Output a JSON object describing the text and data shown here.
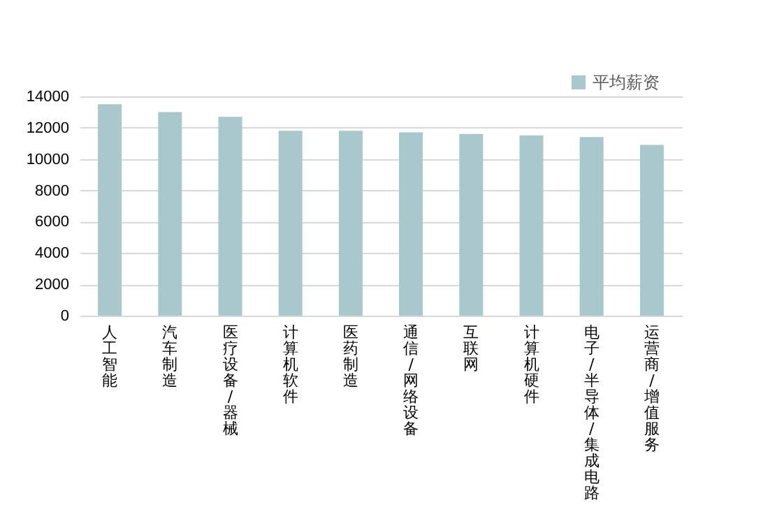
{
  "chart_data": {
    "type": "bar",
    "categories": [
      "人工智能",
      "汽车制造",
      "医疗设备/器械",
      "计算机软件",
      "医药制造",
      "通信/网络设备",
      "互联网",
      "计算机硬件",
      "电子/半导体/集成电路",
      "运营商/增值服务"
    ],
    "series": [
      {
        "name": "平均薪资",
        "color": "#a8c8cb",
        "values": [
          13500,
          13000,
          12700,
          11800,
          11800,
          11700,
          11600,
          11500,
          11400,
          10900
        ]
      }
    ],
    "ylim": [
      0,
      14000
    ],
    "yticks": [
      0,
      2000,
      4000,
      6000,
      8000,
      10000,
      12000,
      14000
    ],
    "grid": "y",
    "legend": "top right"
  }
}
